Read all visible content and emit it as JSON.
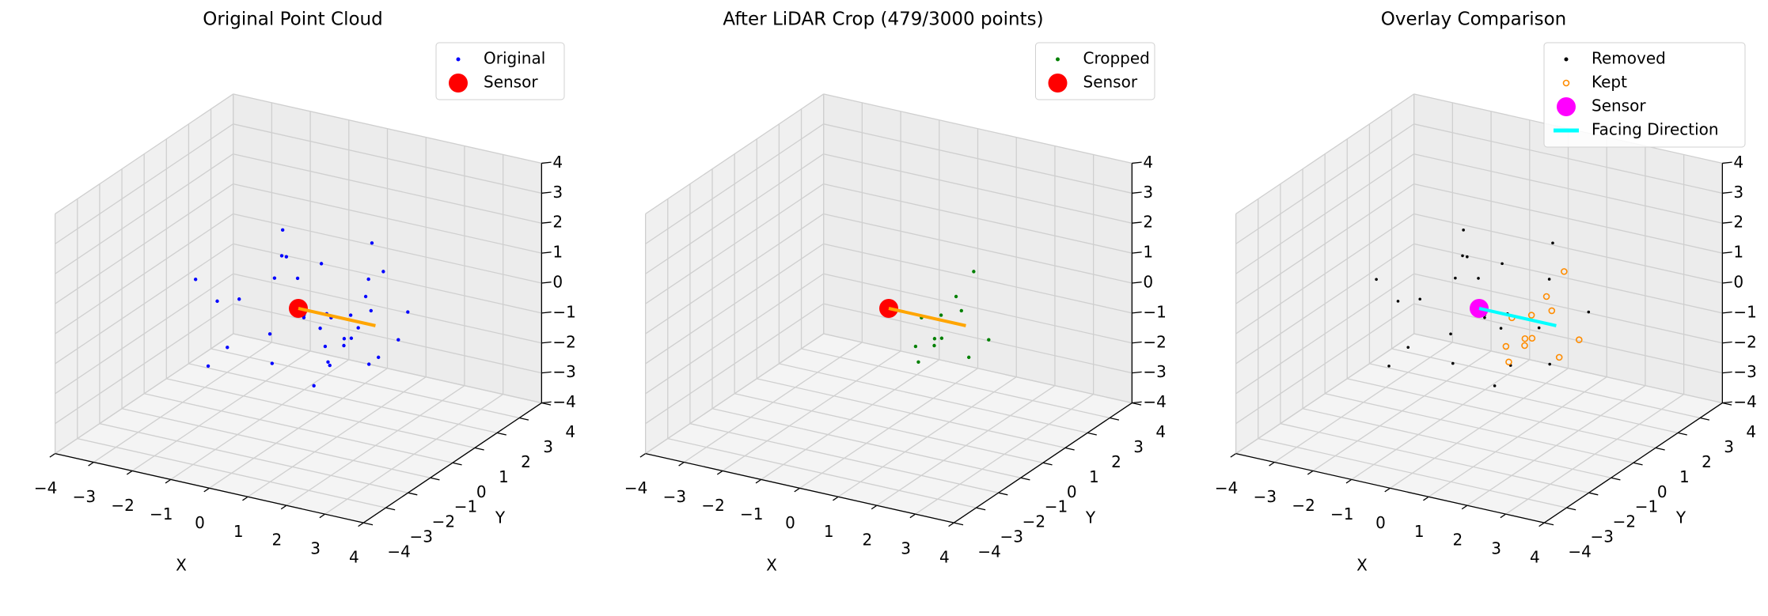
{
  "chart_data": [
    {
      "type": "scatter3d",
      "title": "Original Point Cloud",
      "xlabel": "X",
      "ylabel": "Y",
      "xlim": [
        -4,
        4
      ],
      "ylim": [
        -4,
        4
      ],
      "zlim": [
        -4,
        4
      ],
      "xticks": [
        {
          "value": -4,
          "label": "−4"
        },
        {
          "value": -3,
          "label": "−3"
        },
        {
          "value": -2,
          "label": "−2"
        },
        {
          "value": -1,
          "label": "−1"
        },
        0,
        1,
        2,
        3,
        4
      ],
      "yticks": [
        {
          "value": -4,
          "label": "−4"
        },
        {
          "value": -3,
          "label": "−3"
        },
        {
          "value": -2,
          "label": "−2"
        },
        {
          "value": -1,
          "label": "−1"
        },
        0,
        1,
        2,
        3,
        4
      ],
      "zticks": [
        {
          "value": -4,
          "label": "−4"
        },
        {
          "value": -3,
          "label": "−3"
        },
        {
          "value": -2,
          "label": "−2"
        },
        {
          "value": -1,
          "label": "−1"
        },
        0,
        1,
        2,
        3,
        4
      ],
      "grid": true,
      "legend": "upper right",
      "series": [
        {
          "name": "Original",
          "color": "blue",
          "size": 2.2,
          "x": [
            -1.8,
            -1.2,
            -0.5,
            0.3,
            1.1,
            1.9,
            -1.6,
            -0.2,
            0.7,
            1.5,
            -1.9,
            -0.9,
            0.1,
            1.3,
            -1.3,
            -0.6,
            0.5,
            1.8,
            -1.7,
            -0.3,
            0.9,
            1.6,
            -1.1,
            0.2,
            1.2,
            1.7,
            1.4,
            1.9,
            1.0,
            1.6,
            1.3,
            1.8,
            1.1,
            1.5,
            2.0,
            0.9
          ],
          "y": [
            -1.5,
            0.8,
            1.9,
            -1.7,
            1.4,
            -0.6,
            1.7,
            -0.4,
            0.2,
            -1.9,
            0.1,
            -1.1,
            1.1,
            0.9,
            -1.8,
            0.5,
            -0.9,
            1.8,
            -0.7,
            1.5,
            -1.3,
            0.4,
            1.2,
            -0.1,
            0.3,
            -0.9,
            0.6,
            1.2,
            -0.4,
            -1.3,
            0.1,
            0.7,
            -0.7,
            1.0,
            -0.2,
            0.5
          ],
          "z": [
            1.2,
            -1.6,
            0.4,
            -0.9,
            1.8,
            0.2,
            -0.3,
            1.9,
            -1.8,
            -1.2,
            -1.9,
            0.6,
            -0.7,
            0.9,
            -1.4,
            1.3,
            1.6,
            -0.5,
            0.1,
            -1.5,
            0.7,
            -1.6,
            1.7,
            -0.2,
            -0.8,
            -0.3,
            0.5,
            -1.1,
            -1.3,
            0.8,
            0.1,
            1.4,
            -0.6,
            -1.7,
            0.6,
            -1.0
          ]
        },
        {
          "name": "Sensor",
          "color": "red",
          "size": 12,
          "x": [
            0
          ],
          "y": [
            0
          ],
          "z": [
            0
          ]
        },
        {
          "kind": "line",
          "color": "orange",
          "x": [
            0,
            2
          ],
          "y": [
            0,
            0
          ],
          "z": [
            0,
            0
          ]
        }
      ]
    },
    {
      "type": "scatter3d",
      "title": "After LiDAR Crop (479/3000 points)",
      "xlabel": "X",
      "ylabel": "Y",
      "xlim": [
        -4,
        4
      ],
      "ylim": [
        -4,
        4
      ],
      "zlim": [
        -4,
        4
      ],
      "xticks": [
        {
          "value": -4,
          "label": "−4"
        },
        {
          "value": -3,
          "label": "−3"
        },
        {
          "value": -2,
          "label": "−2"
        },
        {
          "value": -1,
          "label": "−1"
        },
        0,
        1,
        2,
        3,
        4
      ],
      "yticks": [
        {
          "value": -4,
          "label": "−4"
        },
        {
          "value": -3,
          "label": "−3"
        },
        {
          "value": -2,
          "label": "−2"
        },
        {
          "value": -1,
          "label": "−1"
        },
        0,
        1,
        2,
        3,
        4
      ],
      "zticks": [
        {
          "value": -4,
          "label": "−4"
        },
        {
          "value": -3,
          "label": "−3"
        },
        {
          "value": -2,
          "label": "−2"
        },
        {
          "value": -1,
          "label": "−1"
        },
        0,
        1,
        2,
        3,
        4
      ],
      "grid": true,
      "legend": "upper right",
      "series": [
        {
          "name": "Cropped",
          "color": "green",
          "size": 2.2,
          "x": [
            1.2,
            1.7,
            1.4,
            1.9,
            1.0,
            1.6,
            1.3,
            1.8,
            1.1,
            1.5,
            2.0,
            0.9
          ],
          "y": [
            0.3,
            -0.9,
            0.6,
            1.2,
            -0.4,
            -1.3,
            0.1,
            0.7,
            -0.7,
            1.0,
            -0.2,
            0.5
          ],
          "z": [
            -0.8,
            -0.3,
            0.5,
            -1.1,
            -1.3,
            0.8,
            0.1,
            1.4,
            -0.6,
            -1.7,
            0.6,
            -1.0
          ]
        },
        {
          "name": "Sensor",
          "color": "red",
          "size": 12,
          "x": [
            0
          ],
          "y": [
            0
          ],
          "z": [
            0
          ]
        },
        {
          "kind": "line",
          "color": "orange",
          "x": [
            0,
            2
          ],
          "y": [
            0,
            0
          ],
          "z": [
            0,
            0
          ]
        }
      ]
    },
    {
      "type": "scatter3d",
      "title": "Overlay Comparison",
      "xlabel": "X",
      "ylabel": "Y",
      "xlim": [
        -4,
        4
      ],
      "ylim": [
        -4,
        4
      ],
      "zlim": [
        -4,
        4
      ],
      "xticks": [
        {
          "value": -4,
          "label": "−4"
        },
        {
          "value": -3,
          "label": "−3"
        },
        {
          "value": -2,
          "label": "−2"
        },
        {
          "value": -1,
          "label": "−1"
        },
        0,
        1,
        2,
        3,
        4
      ],
      "yticks": [
        {
          "value": -4,
          "label": "−4"
        },
        {
          "value": -3,
          "label": "−3"
        },
        {
          "value": -2,
          "label": "−2"
        },
        {
          "value": -1,
          "label": "−1"
        },
        0,
        1,
        2,
        3,
        4
      ],
      "zticks": [
        {
          "value": -4,
          "label": "−4"
        },
        {
          "value": -3,
          "label": "−3"
        },
        {
          "value": -2,
          "label": "−2"
        },
        {
          "value": -1,
          "label": "−1"
        },
        0,
        1,
        2,
        3,
        4
      ],
      "grid": true,
      "legend": "upper right",
      "series": [
        {
          "name": "Removed",
          "color": "black",
          "size": 1.8,
          "x": [
            -1.8,
            -1.2,
            -0.5,
            0.3,
            1.1,
            1.9,
            -1.6,
            -0.2,
            0.7,
            1.5,
            -1.9,
            -0.9,
            0.1,
            1.3,
            -1.3,
            -0.6,
            0.5,
            1.8,
            -1.7,
            -0.3,
            0.9,
            1.6,
            -1.1,
            0.2
          ],
          "y": [
            -1.5,
            0.8,
            1.9,
            -1.7,
            1.4,
            -0.6,
            1.7,
            -0.4,
            0.2,
            -1.9,
            0.1,
            -1.1,
            1.1,
            0.9,
            -1.8,
            0.5,
            -0.9,
            1.8,
            -0.7,
            1.5,
            -1.3,
            0.4,
            1.2,
            -0.1
          ],
          "z": [
            1.2,
            -1.6,
            0.4,
            -0.9,
            1.8,
            0.2,
            -0.3,
            1.9,
            -1.8,
            -1.2,
            -1.9,
            0.6,
            -0.7,
            0.9,
            -1.4,
            1.3,
            1.6,
            -0.5,
            0.1,
            -1.5,
            0.7,
            -1.6,
            1.7,
            -0.2
          ]
        },
        {
          "name": "Kept",
          "color": "darkorange",
          "size": 3.5,
          "hollow": true,
          "x": [
            1.2,
            1.7,
            1.4,
            1.9,
            1.0,
            1.6,
            1.3,
            1.8,
            1.1,
            1.5,
            2.0,
            0.9
          ],
          "y": [
            0.3,
            -0.9,
            0.6,
            1.2,
            -0.4,
            -1.3,
            0.1,
            0.7,
            -0.7,
            1.0,
            -0.2,
            0.5
          ],
          "z": [
            -0.8,
            -0.3,
            0.5,
            -1.1,
            -1.3,
            0.8,
            0.1,
            1.4,
            -0.6,
            -1.7,
            0.6,
            -1.0
          ]
        },
        {
          "name": "Sensor",
          "color": "magenta",
          "size": 12,
          "x": [
            0
          ],
          "y": [
            0
          ],
          "z": [
            0
          ]
        },
        {
          "name": "Facing Direction",
          "kind": "line",
          "color": "cyan",
          "x": [
            0,
            2
          ],
          "y": [
            0,
            0
          ],
          "z": [
            0,
            0
          ]
        }
      ]
    }
  ]
}
